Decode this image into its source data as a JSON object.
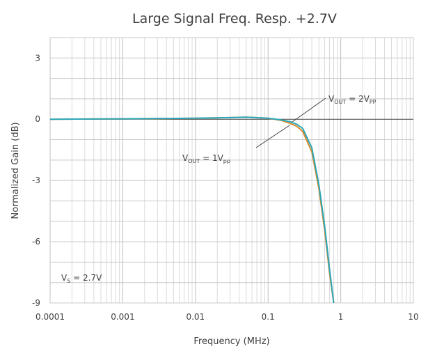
{
  "chart_data": {
    "type": "line",
    "title": "Large Signal Freq. Resp. +2.7V",
    "xlabel": "Frequency (MHz)",
    "ylabel": "Normalized Gain (dB)",
    "x_scale": "log",
    "xlim": [
      0.0001,
      10
    ],
    "ylim": [
      -9,
      4
    ],
    "x_ticks": [
      "0.0001",
      "0.001",
      "0.01",
      "0.1",
      "1",
      "10"
    ],
    "y_ticks": [
      "3",
      "0",
      "-3",
      "-6",
      "-9"
    ],
    "grid": true,
    "series": [
      {
        "color": "#D98A2B",
        "x": [
          0.0001,
          0.001,
          0.01,
          0.03,
          0.05,
          0.08,
          0.1,
          0.15,
          0.2,
          0.25,
          0.3,
          0.4,
          0.5,
          0.6,
          0.7,
          0.8
        ],
        "y": [
          0,
          0.02,
          0.05,
          0.08,
          0.1,
          0.07,
          0.05,
          -0.05,
          -0.2,
          -0.35,
          -0.6,
          -1.6,
          -3.4,
          -5.4,
          -7.5,
          -9.0
        ]
      },
      {
        "color": "#2BA7B8",
        "x": [
          0.0001,
          0.001,
          0.01,
          0.03,
          0.05,
          0.08,
          0.1,
          0.15,
          0.2,
          0.25,
          0.3,
          0.4,
          0.5,
          0.6,
          0.7,
          0.8
        ],
        "y": [
          0,
          0.02,
          0.05,
          0.08,
          0.1,
          0.07,
          0.05,
          -0.03,
          -0.12,
          -0.25,
          -0.45,
          -1.4,
          -3.2,
          -5.2,
          -7.3,
          -9.0
        ]
      }
    ],
    "annotations": {
      "vout2": {
        "pre": "V",
        "sub1": "OUT",
        "mid": " = 2V",
        "sub2": "PP"
      },
      "vout1": {
        "pre": "V",
        "sub1": "OUT",
        "mid": " = 1V",
        "sub2": "pp"
      },
      "vs": {
        "pre": "V",
        "sub1": "S",
        "mid": " = 2.7V"
      }
    }
  }
}
